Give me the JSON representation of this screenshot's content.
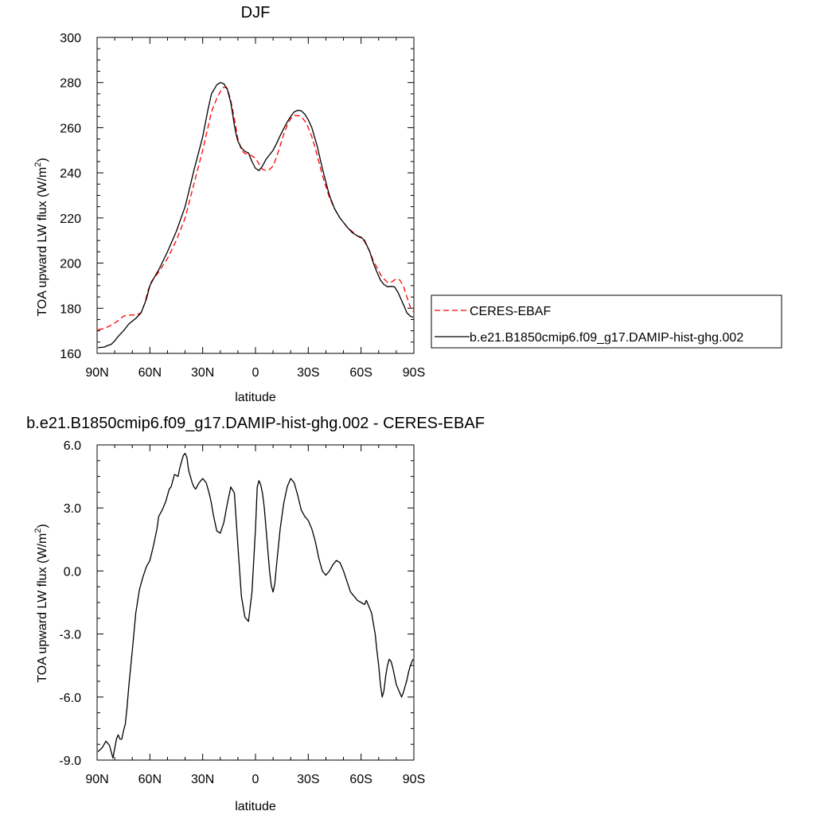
{
  "chart_data": [
    {
      "type": "line",
      "title": "DJF",
      "xlabel": "latitude",
      "ylabel": "TOA upward LW flux (W/m",
      "ylabel_sup": "2",
      "ylabel_end": ")",
      "xlim": [
        90,
        -90
      ],
      "ylim": [
        160,
        300
      ],
      "x_ticks": [
        90,
        60,
        30,
        0,
        -30,
        -60,
        -90
      ],
      "x_tick_labels": [
        "90N",
        "60N",
        "30N",
        "0",
        "30S",
        "60S",
        "90S"
      ],
      "y_ticks": [
        160,
        180,
        200,
        220,
        240,
        260,
        280,
        300
      ],
      "y_tick_labels": [
        "160",
        "180",
        "200",
        "220",
        "240",
        "260",
        "280",
        "300"
      ],
      "legend": {
        "placement": "right"
      },
      "series": [
        {
          "name": "CERES-EBAF",
          "color": "#ff0000",
          "dash": "dashed",
          "x": [
            89.5,
            86,
            82,
            78,
            75,
            72,
            68,
            65,
            63,
            61,
            59,
            55,
            50,
            45,
            40,
            35,
            30,
            25,
            22,
            20,
            18,
            16,
            14,
            12,
            10,
            8,
            6,
            4,
            2,
            0,
            -2,
            -4,
            -6,
            -8,
            -10,
            -12,
            -14,
            -16,
            -18,
            -20,
            -22,
            -25,
            -27,
            -29,
            -32,
            -35,
            -38,
            -40,
            -42,
            -45,
            -48,
            -50,
            -52,
            -55,
            -58,
            -60,
            -62,
            -65,
            -67,
            -69,
            -71,
            -73,
            -75,
            -77,
            -79,
            -80,
            -82,
            -84,
            -86,
            -88,
            -89.5
          ],
          "y": [
            170.5,
            171,
            172.5,
            174.5,
            176.5,
            177,
            177,
            178,
            182,
            188,
            192,
            196,
            202,
            210,
            220,
            235,
            250,
            267,
            273,
            276,
            278,
            277.5,
            272,
            264,
            255,
            250,
            248.5,
            248.3,
            247.5,
            246.5,
            244,
            241.5,
            241,
            241.5,
            243,
            247,
            252,
            257,
            261,
            264,
            265.5,
            265.2,
            264,
            262,
            256,
            248,
            239,
            234,
            229,
            224,
            220,
            218,
            216,
            214,
            212,
            211,
            209.5,
            205,
            201,
            198,
            195,
            193,
            191.5,
            191.5,
            192.5,
            193,
            192.5,
            190,
            185,
            180.5,
            178.5
          ]
        },
        {
          "name": "b.e21.B1850cmip6.f09_g17.DAMIP-hist-ghg.002",
          "color": "#000000",
          "dash": "solid",
          "x": [
            89.5,
            86,
            84,
            82,
            80,
            78,
            75,
            72,
            68,
            65,
            62,
            60,
            58,
            55,
            50,
            45,
            40,
            35,
            30,
            27,
            25,
            22,
            20,
            18,
            16,
            14,
            13,
            12,
            11,
            10,
            8,
            6,
            4,
            2,
            0,
            -2,
            -4,
            -6,
            -8,
            -10,
            -12,
            -14,
            -16,
            -18,
            -20,
            -22,
            -24,
            -26,
            -28,
            -30,
            -32,
            -35,
            -38,
            -40,
            -42,
            -45,
            -48,
            -50,
            -52,
            -55,
            -58,
            -60,
            -62,
            -65,
            -67,
            -69,
            -71,
            -73,
            -75,
            -77,
            -79,
            -81,
            -83,
            -85,
            -86,
            -88,
            -89.5
          ],
          "y": [
            162.5,
            162.8,
            163.5,
            164,
            165.5,
            167.5,
            170,
            173,
            175.5,
            178,
            184,
            190,
            193,
            197,
            205,
            214,
            225,
            241,
            256,
            268,
            275,
            279,
            280,
            279.5,
            277,
            271,
            266,
            261,
            257,
            254,
            251,
            249.5,
            248.8,
            245,
            242,
            241,
            243,
            246,
            248,
            250,
            253,
            256.5,
            259.5,
            262.5,
            265,
            267,
            267.7,
            267.5,
            266,
            263.5,
            260,
            252,
            242,
            236,
            230,
            224,
            220,
            218,
            216,
            213.5,
            212,
            211.5,
            210,
            205,
            200,
            196,
            192.5,
            190.5,
            189.5,
            189.7,
            189.5,
            187,
            183.5,
            180,
            178,
            176.5,
            176
          ]
        }
      ]
    },
    {
      "type": "line",
      "title": "b.e21.B1850cmip6.f09_g17.DAMIP-hist-ghg.002 - CERES-EBAF",
      "xlabel": "latitude",
      "ylabel": "TOA upward LW flux (W/m",
      "ylabel_sup": "2",
      "ylabel_end": ")",
      "xlim": [
        90,
        -90
      ],
      "ylim": [
        -9,
        6
      ],
      "x_ticks": [
        90,
        60,
        30,
        0,
        -30,
        -60,
        -90
      ],
      "x_tick_labels": [
        "90N",
        "60N",
        "30N",
        "0",
        "30S",
        "60S",
        "90S"
      ],
      "y_ticks": [
        -9,
        -6,
        -3,
        0,
        3,
        6
      ],
      "y_tick_labels": [
        "-9.0",
        "-6.0",
        "-3.0",
        "0.0",
        "3.0",
        "6.0"
      ],
      "series": [
        {
          "color": "#000000",
          "dash": "solid",
          "x": [
            89.5,
            87,
            85,
            83,
            81,
            79,
            78,
            77,
            76,
            75,
            74,
            73,
            72,
            70,
            68,
            66,
            64,
            62,
            60,
            58,
            56,
            55,
            53,
            51,
            50,
            49,
            48,
            46,
            44,
            43,
            42,
            41,
            40,
            39,
            38,
            37,
            36,
            35,
            34,
            32,
            30,
            29,
            28,
            27,
            26,
            25,
            24,
            22,
            20,
            18,
            16,
            14,
            12,
            10,
            8,
            6,
            4,
            2,
            0,
            -1,
            -2,
            -3,
            -4,
            -5,
            -6,
            -7,
            -8,
            -9,
            -10,
            -11,
            -12,
            -14,
            -16,
            -18,
            -20,
            -22,
            -24,
            -26,
            -28,
            -30,
            -32,
            -34,
            -35,
            -36,
            -37,
            -38,
            -40,
            -42,
            -44,
            -46,
            -48,
            -50,
            -52,
            -54,
            -56,
            -58,
            -60,
            -62,
            -63,
            -64,
            -65,
            -66,
            -67,
            -68,
            -69,
            -70,
            -71,
            -72,
            -73,
            -74,
            -75,
            -76,
            -77,
            -78,
            -79,
            -80,
            -81,
            -82,
            -83,
            -84,
            -85,
            -86,
            -87,
            -88,
            -89,
            -89.5
          ],
          "y": [
            -8.6,
            -8.4,
            -8.1,
            -8.3,
            -8.9,
            -8.0,
            -7.8,
            -8.0,
            -8.0,
            -7.6,
            -7.3,
            -6.5,
            -5.5,
            -3.8,
            -2.0,
            -0.9,
            -0.3,
            0.2,
            0.5,
            1.2,
            2.0,
            2.6,
            2.9,
            3.3,
            3.6,
            3.9,
            4.0,
            4.6,
            4.5,
            4.9,
            5.2,
            5.5,
            5.6,
            5.4,
            4.8,
            4.5,
            4.2,
            4.0,
            3.9,
            4.2,
            4.4,
            4.3,
            4.2,
            3.9,
            3.6,
            3.2,
            2.7,
            1.9,
            1.8,
            2.3,
            3.2,
            4.0,
            3.7,
            1.2,
            -1.2,
            -2.2,
            -2.4,
            -1.0,
            2.0,
            4.0,
            4.3,
            4.1,
            3.7,
            3.0,
            2.0,
            1.0,
            0.0,
            -0.7,
            -1.0,
            -0.6,
            0.3,
            2.0,
            3.2,
            4.0,
            4.4,
            4.2,
            3.6,
            2.9,
            2.6,
            2.4,
            2.0,
            1.4,
            1.0,
            0.6,
            0.3,
            0.0,
            -0.2,
            0.0,
            0.3,
            0.5,
            0.4,
            0.0,
            -0.5,
            -1.0,
            -1.2,
            -1.4,
            -1.5,
            -1.6,
            -1.4,
            -1.6,
            -1.8,
            -2.0,
            -2.5,
            -3.0,
            -3.8,
            -4.5,
            -5.4,
            -6.0,
            -5.7,
            -5.0,
            -4.5,
            -4.2,
            -4.3,
            -4.6,
            -5.0,
            -5.4,
            -5.6,
            -5.8,
            -6.0,
            -5.8,
            -5.5,
            -5.2,
            -4.8,
            -4.5,
            -4.3,
            -4.2
          ]
        }
      ]
    }
  ]
}
